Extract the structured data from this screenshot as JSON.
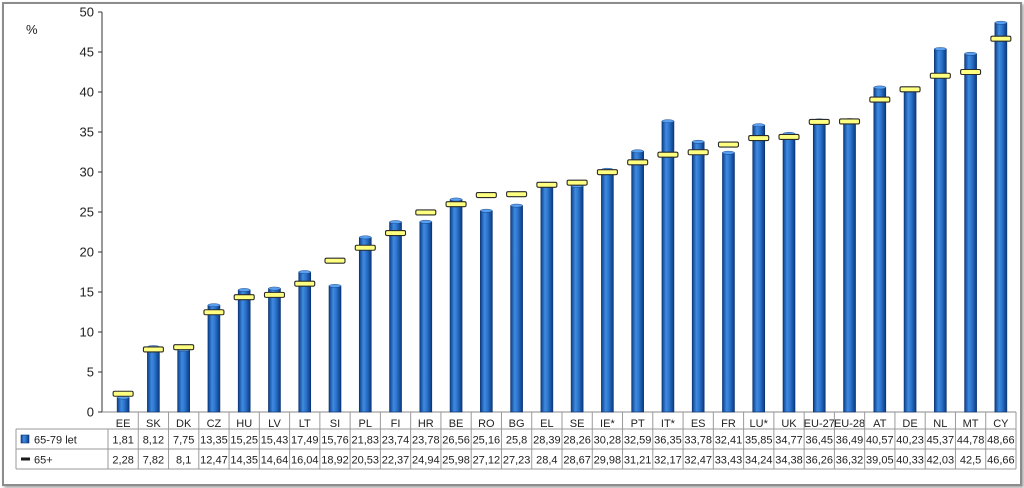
{
  "chart_data": {
    "type": "bar",
    "ylabel": "%",
    "ylim": [
      0,
      50
    ],
    "yticks": [
      0,
      5,
      10,
      15,
      20,
      25,
      30,
      35,
      40,
      45,
      50
    ],
    "grid": false,
    "legend_placement": "data-table",
    "categories": [
      "EE",
      "SK",
      "DK",
      "CZ",
      "HU",
      "LV",
      "LT",
      "SI",
      "PL",
      "FI",
      "HR",
      "BE",
      "RO",
      "BG",
      "EL",
      "SE",
      "IE*",
      "PT",
      "IT*",
      "ES",
      "FR",
      "LU*",
      "UK",
      "EU-27",
      "EU-28",
      "AT",
      "DE",
      "NL",
      "MT",
      "CY"
    ],
    "series": [
      {
        "name": "65-79 let",
        "kind": "bar",
        "color": "#1565c0",
        "values": [
          1.81,
          8.12,
          7.75,
          13.35,
          15.25,
          15.43,
          17.49,
          15.76,
          21.83,
          23.74,
          23.78,
          26.56,
          25.16,
          25.8,
          28.39,
          28.26,
          30.28,
          32.59,
          36.35,
          33.78,
          32.41,
          35.85,
          34.77,
          36.45,
          36.49,
          40.57,
          40.23,
          45.37,
          44.78,
          48.66
        ],
        "labels": [
          "1,81",
          "8,12",
          "7,75",
          "13,35",
          "15,25",
          "15,43",
          "17,49",
          "15,76",
          "21,83",
          "23,74",
          "23,78",
          "26,56",
          "25,16",
          "25,8",
          "28,39",
          "28,26",
          "30,28",
          "32,59",
          "36,35",
          "33,78",
          "32,41",
          "35,85",
          "34,77",
          "36,45",
          "36,49",
          "40,57",
          "40,23",
          "45,37",
          "44,78",
          "48,66"
        ]
      },
      {
        "name": "65+",
        "kind": "marker",
        "color": "#ffff80",
        "values": [
          2.28,
          7.82,
          8.1,
          12.47,
          14.35,
          14.64,
          16.04,
          18.92,
          20.53,
          22.37,
          24.94,
          25.98,
          27.12,
          27.23,
          28.4,
          28.67,
          29.98,
          31.21,
          32.17,
          32.47,
          33.43,
          34.24,
          34.38,
          36.26,
          36.32,
          39.05,
          40.33,
          42.03,
          42.5,
          46.66
        ],
        "labels": [
          "2,28",
          "7,82",
          "8,1",
          "12,47",
          "14,35",
          "14,64",
          "16,04",
          "18,92",
          "20,53",
          "22,37",
          "24,94",
          "25,98",
          "27,12",
          "27,23",
          "28,4",
          "28,67",
          "29,98",
          "31,21",
          "32,17",
          "32,47",
          "33,43",
          "34,24",
          "34,38",
          "36,26",
          "36,32",
          "39,05",
          "40,33",
          "42,03",
          "42,5",
          "46,66"
        ]
      }
    ]
  }
}
